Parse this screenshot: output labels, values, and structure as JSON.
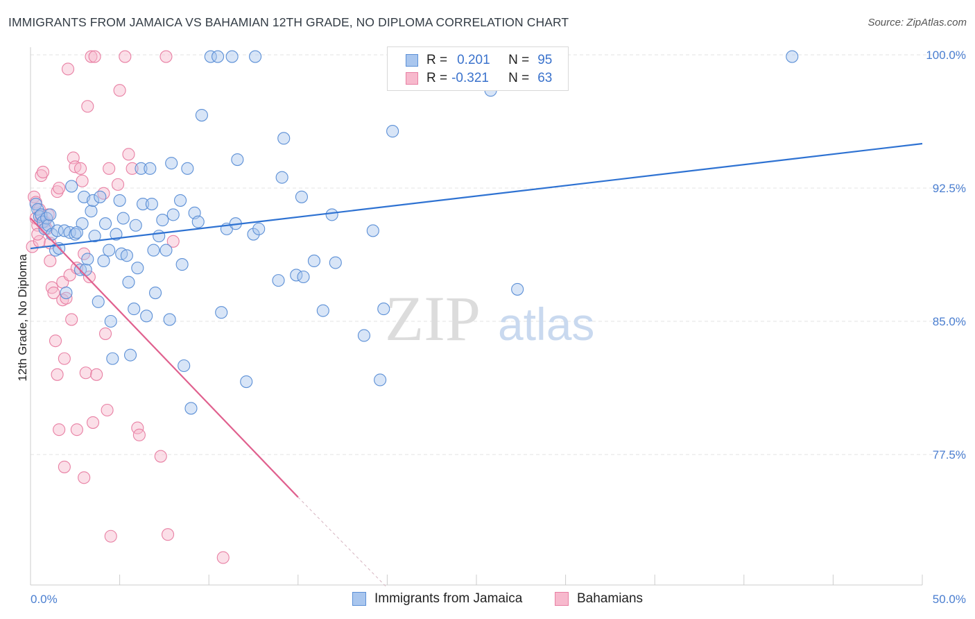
{
  "title": "IMMIGRANTS FROM JAMAICA VS BAHAMIAN 12TH GRADE, NO DIPLOMA CORRELATION CHART",
  "source": "Source: ZipAtlas.com",
  "watermark": {
    "zip": "ZIP",
    "atlas": "atlas"
  },
  "legend": {
    "r_label": "R =",
    "n_label": "N =",
    "jamaica": {
      "r": "0.201",
      "n": "95"
    },
    "bahamians": {
      "r": "-0.321",
      "n": "63"
    }
  },
  "colors": {
    "jamaica_fill": "#a9c6ee",
    "jamaica_stroke": "#5b8fd6",
    "jamaica_line": "#2e72d2",
    "bahamians_fill": "#f7b9cd",
    "bahamians_stroke": "#e87fa3",
    "bahamians_line": "#e0608e",
    "tick_text": "#4a7ed0",
    "grid": "#e3e3e3"
  },
  "chart_data": {
    "type": "scatter",
    "title": "IMMIGRANTS FROM JAMAICA VS BAHAMIAN 12TH GRADE, NO DIPLOMA CORRELATION CHART",
    "xlabel": "",
    "ylabel": "12th Grade, No Diploma",
    "xlim": [
      0,
      50
    ],
    "ylim": [
      71.0,
      101.0
    ],
    "x_tick_labels": [
      "0.0%",
      "50.0%"
    ],
    "y_ticks": [
      77.5,
      85.0,
      92.5,
      100.0
    ],
    "y_tick_labels": [
      "77.5%",
      "85.0%",
      "92.5%",
      "100.0%"
    ],
    "grid": "horizontal dashed",
    "legend_position": "top-center",
    "series": [
      {
        "name": "Immigrants from Jamaica",
        "r": 0.201,
        "n": 95,
        "trend": {
          "x": [
            0,
            50
          ],
          "y": [
            89.1,
            95.0
          ]
        },
        "points": [
          [
            0.3,
            91.6
          ],
          [
            0.4,
            91.3
          ],
          [
            0.5,
            90.9
          ],
          [
            0.6,
            91.0
          ],
          [
            0.7,
            90.6
          ],
          [
            0.8,
            90.2
          ],
          [
            0.9,
            90.8
          ],
          [
            1.0,
            90.4
          ],
          [
            1.2,
            89.9
          ],
          [
            1.4,
            89.0
          ],
          [
            1.5,
            90.1
          ],
          [
            1.6,
            89.1
          ],
          [
            1.9,
            90.1
          ],
          [
            2.0,
            86.6
          ],
          [
            2.2,
            90.0
          ],
          [
            2.3,
            92.6
          ],
          [
            2.5,
            89.9
          ],
          [
            2.8,
            87.9
          ],
          [
            2.9,
            90.5
          ],
          [
            3.0,
            92.0
          ],
          [
            3.1,
            87.9
          ],
          [
            3.2,
            88.5
          ],
          [
            3.4,
            91.2
          ],
          [
            3.5,
            91.8
          ],
          [
            3.6,
            89.8
          ],
          [
            3.8,
            86.1
          ],
          [
            3.9,
            92.0
          ],
          [
            4.1,
            88.4
          ],
          [
            4.2,
            90.5
          ],
          [
            4.4,
            89.0
          ],
          [
            4.5,
            85.0
          ],
          [
            4.6,
            82.9
          ],
          [
            5.0,
            91.8
          ],
          [
            5.1,
            88.8
          ],
          [
            5.2,
            90.8
          ],
          [
            5.4,
            88.7
          ],
          [
            5.5,
            87.2
          ],
          [
            5.6,
            83.1
          ],
          [
            5.8,
            85.7
          ],
          [
            5.9,
            90.4
          ],
          [
            6.0,
            88.0
          ],
          [
            6.2,
            93.6
          ],
          [
            6.3,
            91.6
          ],
          [
            6.5,
            85.3
          ],
          [
            6.7,
            93.6
          ],
          [
            6.8,
            91.6
          ],
          [
            6.9,
            89.0
          ],
          [
            7.0,
            86.6
          ],
          [
            7.2,
            89.8
          ],
          [
            7.4,
            90.7
          ],
          [
            7.6,
            89.0
          ],
          [
            7.8,
            85.1
          ],
          [
            7.9,
            93.9
          ],
          [
            8.0,
            91.0
          ],
          [
            8.4,
            91.8
          ],
          [
            8.5,
            88.2
          ],
          [
            8.6,
            82.5
          ],
          [
            8.8,
            93.6
          ],
          [
            9.0,
            80.1
          ],
          [
            9.2,
            91.1
          ],
          [
            9.4,
            90.6
          ],
          [
            9.6,
            96.6
          ],
          [
            10.1,
            99.9
          ],
          [
            10.5,
            99.9
          ],
          [
            10.7,
            85.5
          ],
          [
            11.0,
            90.2
          ],
          [
            11.3,
            99.9
          ],
          [
            11.5,
            90.5
          ],
          [
            11.6,
            94.1
          ],
          [
            12.1,
            81.6
          ],
          [
            12.5,
            89.9
          ],
          [
            12.6,
            99.9
          ],
          [
            12.8,
            90.2
          ],
          [
            13.9,
            87.3
          ],
          [
            14.1,
            93.1
          ],
          [
            14.2,
            95.3
          ],
          [
            14.9,
            87.6
          ],
          [
            15.2,
            92.0
          ],
          [
            15.3,
            87.5
          ],
          [
            15.9,
            88.4
          ],
          [
            16.4,
            85.6
          ],
          [
            16.9,
            91.0
          ],
          [
            17.1,
            88.3
          ],
          [
            18.7,
            84.2
          ],
          [
            19.2,
            90.1
          ],
          [
            19.6,
            81.7
          ],
          [
            19.8,
            85.7
          ],
          [
            20.3,
            95.7
          ],
          [
            20.5,
            99.9
          ],
          [
            25.8,
            98.0
          ],
          [
            27.3,
            86.8
          ],
          [
            42.7,
            99.9
          ],
          [
            1.1,
            91.0
          ],
          [
            2.6,
            90.0
          ],
          [
            4.8,
            89.9
          ]
        ]
      },
      {
        "name": "Bahamians",
        "r": -0.321,
        "n": 63,
        "trend": {
          "x": [
            0,
            15.0
          ],
          "y": [
            90.8,
            75.1
          ]
        },
        "trend_dashed": {
          "x": [
            15.0,
            20.0
          ],
          "y": [
            75.1,
            70.0
          ]
        },
        "points": [
          [
            0.1,
            89.2
          ],
          [
            0.2,
            92.0
          ],
          [
            0.3,
            91.7
          ],
          [
            0.3,
            90.8
          ],
          [
            0.4,
            90.4
          ],
          [
            0.5,
            91.3
          ],
          [
            0.5,
            89.5
          ],
          [
            0.6,
            93.2
          ],
          [
            0.7,
            93.4
          ],
          [
            0.8,
            90.6
          ],
          [
            0.9,
            90.2
          ],
          [
            1.0,
            91.0
          ],
          [
            1.1,
            89.4
          ],
          [
            1.1,
            88.4
          ],
          [
            1.2,
            86.9
          ],
          [
            1.3,
            86.6
          ],
          [
            1.4,
            83.9
          ],
          [
            1.5,
            92.3
          ],
          [
            1.5,
            82.0
          ],
          [
            1.6,
            92.5
          ],
          [
            1.6,
            78.9
          ],
          [
            1.8,
            87.2
          ],
          [
            1.8,
            86.2
          ],
          [
            1.9,
            82.9
          ],
          [
            1.9,
            76.8
          ],
          [
            2.0,
            86.3
          ],
          [
            2.1,
            99.2
          ],
          [
            2.2,
            87.6
          ],
          [
            2.3,
            85.1
          ],
          [
            2.4,
            94.2
          ],
          [
            2.5,
            93.7
          ],
          [
            2.6,
            88.0
          ],
          [
            2.6,
            78.9
          ],
          [
            2.8,
            93.6
          ],
          [
            2.9,
            92.9
          ],
          [
            3.0,
            88.8
          ],
          [
            3.0,
            76.2
          ],
          [
            3.1,
            82.1
          ],
          [
            3.2,
            97.1
          ],
          [
            3.3,
            87.5
          ],
          [
            3.4,
            99.9
          ],
          [
            3.5,
            79.3
          ],
          [
            3.6,
            99.9
          ],
          [
            3.7,
            82.0
          ],
          [
            4.1,
            92.2
          ],
          [
            4.2,
            84.3
          ],
          [
            4.3,
            80.0
          ],
          [
            4.4,
            93.6
          ],
          [
            4.5,
            72.9
          ],
          [
            4.9,
            92.7
          ],
          [
            5.0,
            98.0
          ],
          [
            5.3,
            99.9
          ],
          [
            5.5,
            94.4
          ],
          [
            5.7,
            93.6
          ],
          [
            6.0,
            79.0
          ],
          [
            6.1,
            78.6
          ],
          [
            7.3,
            77.4
          ],
          [
            7.6,
            99.9
          ],
          [
            7.7,
            73.0
          ],
          [
            8.0,
            89.5
          ],
          [
            10.8,
            71.7
          ],
          [
            0.4,
            89.9
          ],
          [
            0.6,
            90.9
          ]
        ]
      }
    ]
  },
  "bottom_legend": {
    "jamaica": "Immigrants from Jamaica",
    "bahamians": "Bahamians"
  }
}
